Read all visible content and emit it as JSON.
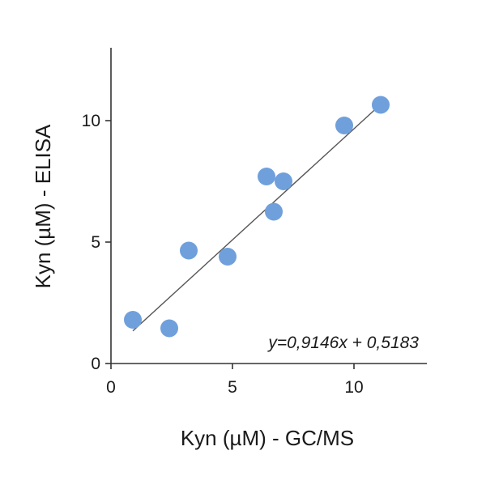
{
  "chart_data": {
    "type": "scatter",
    "title": "",
    "xlabel": "Kyn (µM) - GC/MS",
    "ylabel": "Kyn (µM) - ELISA",
    "xlim": [
      0,
      13
    ],
    "ylim": [
      0,
      13
    ],
    "xticks": [
      "0",
      "5",
      "10"
    ],
    "yticks": [
      "0",
      "5",
      "10"
    ],
    "grid": false,
    "points": [
      {
        "x": 0.9,
        "y": 1.8
      },
      {
        "x": 2.4,
        "y": 1.45
      },
      {
        "x": 3.2,
        "y": 4.65
      },
      {
        "x": 4.8,
        "y": 4.4
      },
      {
        "x": 6.4,
        "y": 7.7
      },
      {
        "x": 6.7,
        "y": 6.25
      },
      {
        "x": 7.1,
        "y": 7.5
      },
      {
        "x": 9.6,
        "y": 9.8
      },
      {
        "x": 11.1,
        "y": 10.65
      }
    ],
    "fit": {
      "slope": 0.9146,
      "intercept": 0.5183,
      "x_range": [
        0.9,
        11.1
      ]
    },
    "annotation": "y=0,9146x + 0,5183",
    "colors": {
      "points": "#6fa0dc",
      "line": "#555555",
      "axis": "#333333"
    }
  }
}
